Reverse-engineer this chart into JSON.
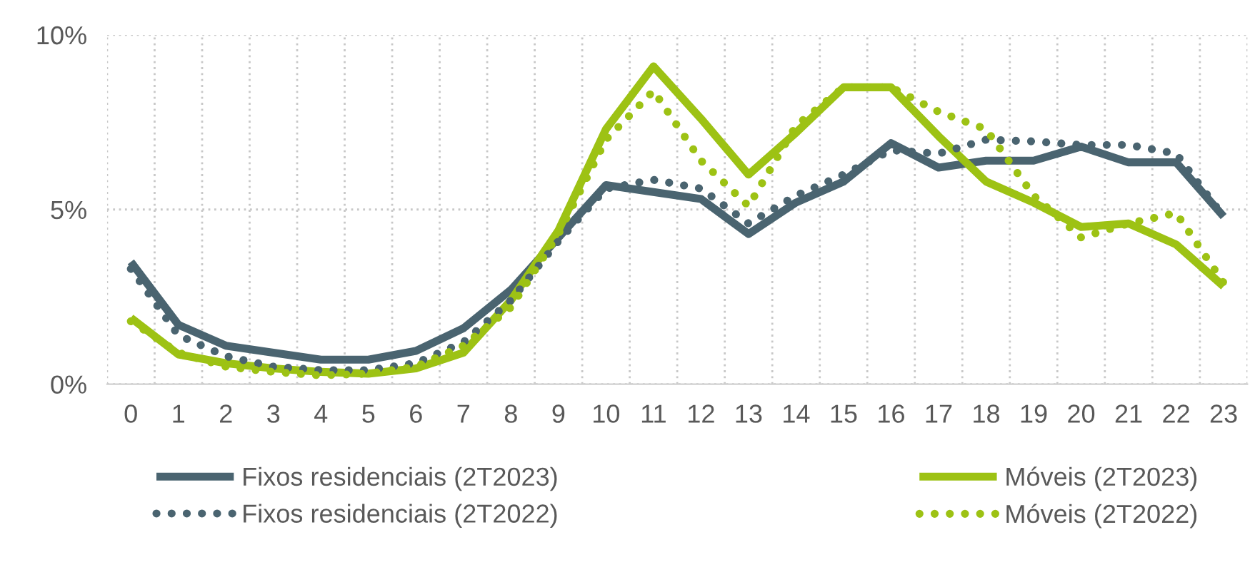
{
  "chart_data": {
    "type": "line",
    "categories": [
      "0",
      "1",
      "2",
      "3",
      "4",
      "5",
      "6",
      "7",
      "8",
      "9",
      "10",
      "11",
      "12",
      "13",
      "14",
      "15",
      "16",
      "17",
      "18",
      "19",
      "20",
      "21",
      "22",
      "23"
    ],
    "series": [
      {
        "name": "Fixos residenciais (2T2023)",
        "color": "#4a6470",
        "line_style": "solid",
        "values": [
          3.5,
          1.7,
          1.1,
          0.9,
          0.7,
          0.7,
          0.95,
          1.6,
          2.7,
          4.2,
          5.7,
          5.5,
          5.3,
          4.3,
          5.2,
          5.8,
          6.9,
          6.2,
          6.4,
          6.4,
          6.8,
          6.35,
          6.35,
          4.8
        ]
      },
      {
        "name": "Móveis (2T2023)",
        "color": "#9dc214",
        "line_style": "solid",
        "values": [
          1.9,
          0.85,
          0.6,
          0.45,
          0.35,
          0.3,
          0.45,
          0.9,
          2.4,
          4.4,
          7.3,
          9.1,
          7.6,
          6.0,
          7.2,
          8.5,
          8.5,
          7.1,
          5.8,
          5.2,
          4.5,
          4.6,
          4.0,
          2.8
        ]
      },
      {
        "name": "Fixos residenciais (2T2022)",
        "color": "#4a6470",
        "line_style": "dotted",
        "values": [
          3.3,
          1.4,
          0.8,
          0.5,
          0.4,
          0.4,
          0.6,
          1.2,
          2.4,
          4.1,
          5.6,
          5.85,
          5.6,
          4.6,
          5.4,
          6.0,
          6.7,
          6.6,
          7.0,
          6.95,
          6.85,
          6.85,
          6.6,
          4.8
        ]
      },
      {
        "name": "Móveis (2T2022)",
        "color": "#9dc214",
        "line_style": "dotted",
        "values": [
          1.8,
          0.9,
          0.5,
          0.35,
          0.25,
          0.3,
          0.5,
          1.1,
          2.2,
          4.3,
          7.0,
          8.4,
          6.4,
          5.1,
          7.4,
          8.5,
          8.5,
          7.8,
          7.3,
          5.4,
          4.2,
          4.6,
          4.9,
          2.9
        ]
      }
    ],
    "ylim": [
      0,
      10
    ],
    "yticks": [
      {
        "value": 0,
        "label": "0%"
      },
      {
        "value": 5,
        "label": "5%"
      },
      {
        "value": 10,
        "label": "10%"
      }
    ],
    "grid": true,
    "legend": "bottom",
    "marker": "none"
  }
}
